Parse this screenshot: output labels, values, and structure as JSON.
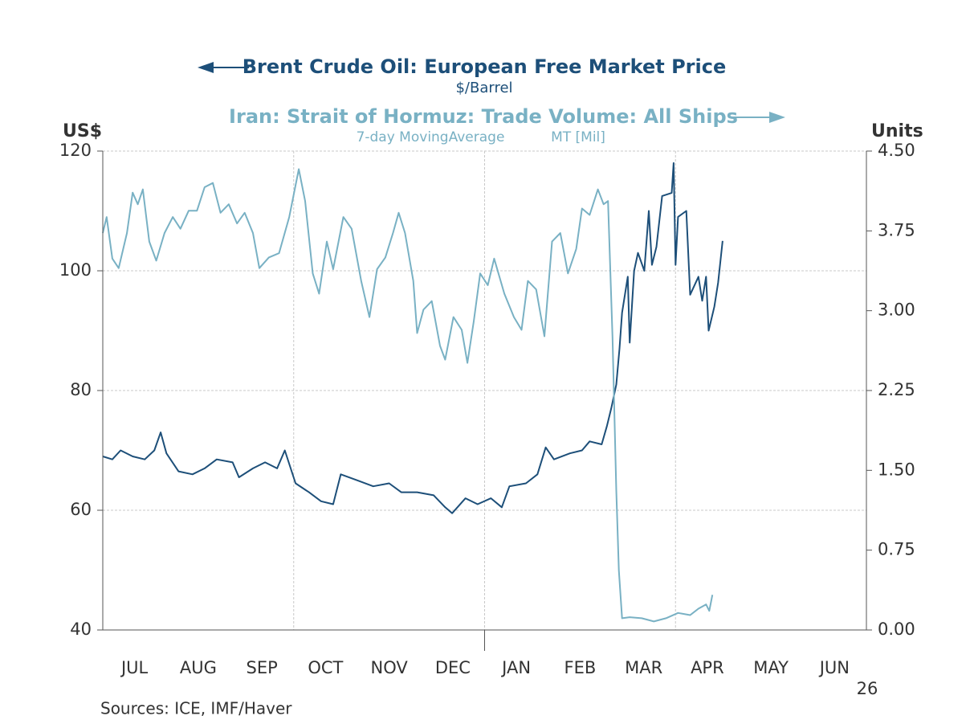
{
  "chart_data": {
    "type": "line",
    "title": "Brent Crude Oil: European Free Market Price",
    "subtitle": "$/Barrel",
    "title2": "Iran: Strait of Hormuz: Trade Volume: All Ships",
    "subtitle2": [
      "7-day MovingAverage",
      "MT [Mil]"
    ],
    "ylabel": "US$",
    "y2label": "Units",
    "source": "Sources:  ICE, IMF/Haver",
    "x_year_label": "26",
    "xlim": [
      0,
      12
    ],
    "xticks": [
      {
        "value": 0.5,
        "label": "JUL"
      },
      {
        "value": 1.5,
        "label": "AUG"
      },
      {
        "value": 2.5,
        "label": "SEP"
      },
      {
        "value": 3.5,
        "label": "OCT"
      },
      {
        "value": 4.5,
        "label": "NOV"
      },
      {
        "value": 5.5,
        "label": "DEC"
      },
      {
        "value": 6.5,
        "label": "JAN"
      },
      {
        "value": 7.5,
        "label": "FEB"
      },
      {
        "value": 8.5,
        "label": "MAR"
      },
      {
        "value": 9.5,
        "label": "APR"
      },
      {
        "value": 10.5,
        "label": "MAY"
      },
      {
        "value": 11.5,
        "label": "JUN"
      }
    ],
    "xgrid": [
      3,
      6,
      9
    ],
    "ylim": [
      40,
      120
    ],
    "yticks": [
      40,
      60,
      80,
      100,
      120
    ],
    "y2lim": [
      0,
      4.5
    ],
    "y2ticks": [
      {
        "value": 0,
        "label": "0.00"
      },
      {
        "value": 0.75,
        "label": "0.75"
      },
      {
        "value": 1.5,
        "label": "1.50"
      },
      {
        "value": 2.25,
        "label": "2.25"
      },
      {
        "value": 3,
        "label": "3.00"
      },
      {
        "value": 3.75,
        "label": "3.75"
      },
      {
        "value": 4.5,
        "label": "4.50"
      }
    ],
    "grid": true,
    "series": [
      {
        "name": "Brent Crude Oil: European Free Market Price",
        "color": "#1d4f79",
        "axis": "y",
        "x": [
          0.0,
          0.15,
          0.28,
          0.47,
          0.66,
          0.81,
          0.91,
          1.0,
          1.19,
          1.41,
          1.6,
          1.79,
          2.04,
          2.14,
          2.36,
          2.55,
          2.74,
          2.86,
          3.03,
          3.24,
          3.43,
          3.62,
          3.74,
          4.0,
          4.25,
          4.5,
          4.69,
          4.94,
          5.2,
          5.38,
          5.49,
          5.7,
          5.89,
          6.1,
          6.27,
          6.39,
          6.65,
          6.83,
          6.96,
          7.09,
          7.34,
          7.53,
          7.65,
          7.84,
          7.92,
          7.99,
          8.07,
          8.12,
          8.16,
          8.25,
          8.28,
          8.35,
          8.41,
          8.51,
          8.58,
          8.63,
          8.7,
          8.79,
          8.94,
          8.97,
          9.0,
          9.04,
          9.17,
          9.23,
          9.36,
          9.42,
          9.48,
          9.52,
          9.61,
          9.67,
          9.74
        ],
        "values": [
          69,
          68.5,
          70,
          69,
          68.5,
          70,
          73,
          69.5,
          66.5,
          66,
          67,
          68.5,
          68,
          65.5,
          67,
          68,
          67,
          70,
          64.5,
          63,
          61.5,
          61,
          66,
          65,
          64,
          64.5,
          63,
          63,
          62.5,
          60.5,
          59.5,
          62,
          61,
          62,
          60.5,
          64,
          64.5,
          66,
          70.5,
          68.5,
          69.5,
          70,
          71.5,
          71,
          74,
          77,
          81,
          87,
          93,
          99,
          88,
          100,
          103,
          100,
          110,
          101,
          104,
          112.5,
          113,
          118,
          101,
          109,
          110,
          96,
          99,
          95,
          99,
          90,
          94,
          98,
          105
        ]
      },
      {
        "name": "Iran: Strait of Hormuz: Trade Volume: All Ships",
        "color": "#79b1c4",
        "axis": "y2",
        "x": [
          0.0,
          0.06,
          0.15,
          0.25,
          0.38,
          0.47,
          0.55,
          0.63,
          0.73,
          0.84,
          0.97,
          1.1,
          1.22,
          1.35,
          1.48,
          1.6,
          1.73,
          1.85,
          1.98,
          2.11,
          2.23,
          2.36,
          2.46,
          2.61,
          2.77,
          2.93,
          3.08,
          3.18,
          3.3,
          3.4,
          3.52,
          3.62,
          3.78,
          3.91,
          4.06,
          4.19,
          4.31,
          4.44,
          4.56,
          4.65,
          4.75,
          4.88,
          4.94,
          5.04,
          5.17,
          5.3,
          5.38,
          5.51,
          5.64,
          5.73,
          5.83,
          5.93,
          6.05,
          6.15,
          6.31,
          6.46,
          6.58,
          6.68,
          6.81,
          6.94,
          7.06,
          7.19,
          7.31,
          7.44,
          7.53,
          7.65,
          7.78,
          7.87,
          7.94,
          8.01,
          8.07,
          8.11,
          8.16,
          8.28,
          8.47,
          8.66,
          8.85,
          9.04,
          9.23,
          9.36,
          9.48,
          9.53,
          9.58
        ],
        "values": [
          3.73,
          3.88,
          3.49,
          3.4,
          3.73,
          4.11,
          4.0,
          4.14,
          3.65,
          3.47,
          3.73,
          3.88,
          3.77,
          3.94,
          3.94,
          4.16,
          4.2,
          3.92,
          4.0,
          3.82,
          3.92,
          3.73,
          3.4,
          3.5,
          3.54,
          3.88,
          4.33,
          4.03,
          3.35,
          3.16,
          3.65,
          3.39,
          3.88,
          3.77,
          3.28,
          2.94,
          3.39,
          3.5,
          3.73,
          3.92,
          3.73,
          3.28,
          2.79,
          3.01,
          3.09,
          2.67,
          2.54,
          2.94,
          2.82,
          2.51,
          2.9,
          3.35,
          3.24,
          3.49,
          3.16,
          2.94,
          2.82,
          3.28,
          3.2,
          2.76,
          3.65,
          3.73,
          3.35,
          3.58,
          3.96,
          3.9,
          4.14,
          4.0,
          4.03,
          2.75,
          1.31,
          0.56,
          0.11,
          0.12,
          0.11,
          0.08,
          0.11,
          0.16,
          0.14,
          0.2,
          0.24,
          0.18,
          0.33
        ]
      }
    ]
  }
}
